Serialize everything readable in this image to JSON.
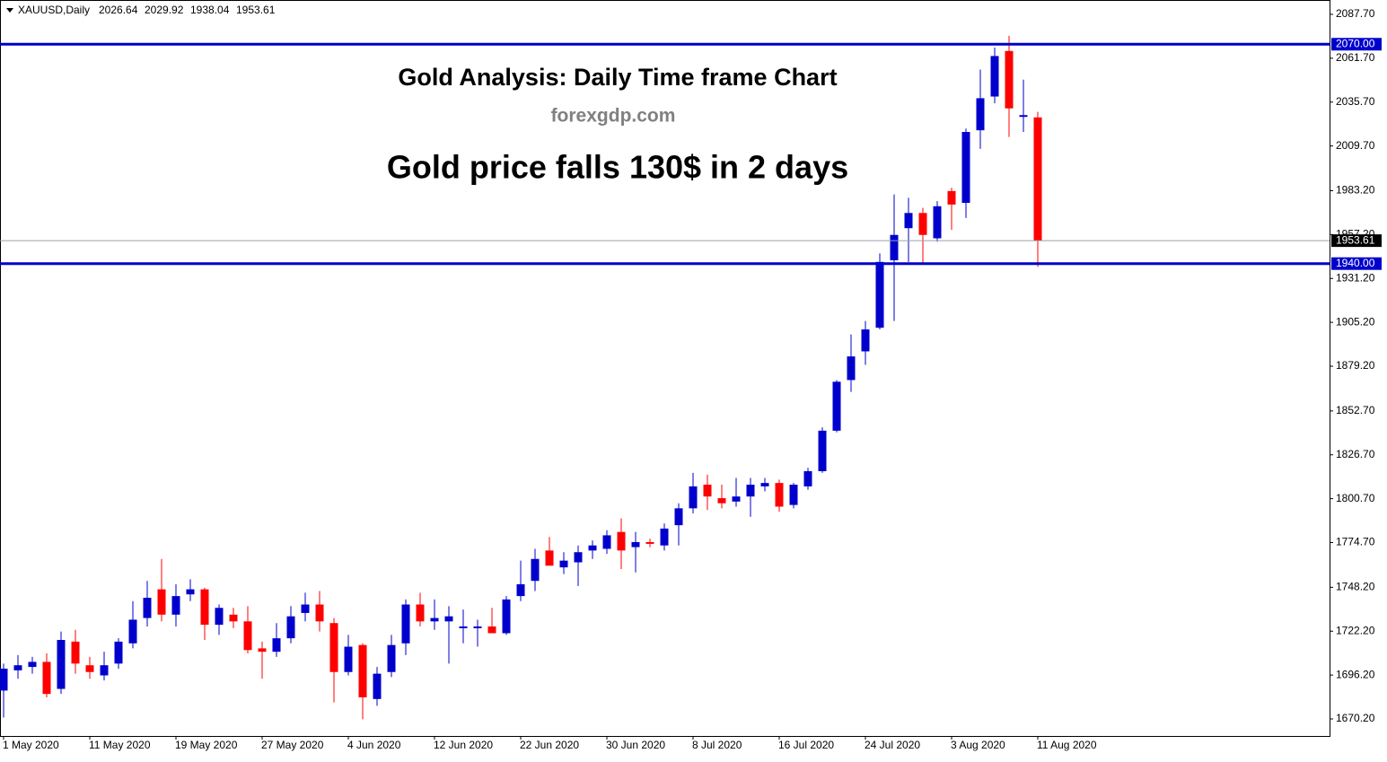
{
  "chart_data": {
    "type": "candlestick",
    "symbol": "XAUUSD,Daily",
    "title": "Gold Analysis: Daily Time frame Chart",
    "subtitle": "forexgdp.com",
    "annotation": "Gold price falls 130$ in 2 days",
    "categories": [
      "1 May 2020",
      null,
      null,
      null,
      null,
      null,
      "11 May 2020",
      null,
      null,
      null,
      null,
      null,
      "19 May 2020",
      null,
      null,
      null,
      null,
      null,
      "27 May 2020",
      null,
      null,
      null,
      null,
      null,
      "4 Jun 2020",
      null,
      null,
      null,
      null,
      null,
      "12 Jun 2020",
      null,
      null,
      null,
      null,
      null,
      "22 Jun 2020",
      null,
      null,
      null,
      null,
      null,
      "30 Jun 2020",
      null,
      null,
      null,
      null,
      null,
      "8 Jul 2020",
      null,
      null,
      null,
      null,
      null,
      "16 Jul 2020",
      null,
      null,
      null,
      null,
      null,
      "24 Jul 2020",
      null,
      null,
      null,
      null,
      null,
      "3 Aug 2020",
      null,
      null,
      null,
      null,
      null,
      "11 Aug 2020"
    ],
    "open": [
      1687,
      1699,
      1701,
      1704,
      1688,
      1716,
      1702,
      1696,
      1703,
      1715,
      1730,
      1747,
      1732,
      1744,
      1747,
      1726,
      1732,
      1728,
      1712,
      1710,
      1718,
      1733,
      1738,
      1727,
      1698,
      1714,
      1682,
      1698,
      1715,
      1738,
      1728,
      1728,
      1724,
      1724,
      1725,
      1721,
      1743,
      1752,
      1770,
      1760,
      1763,
      1770,
      1771,
      1781,
      1772,
      1775,
      1773,
      1785,
      1795,
      1809,
      1801,
      1799,
      1802,
      1808,
      1810,
      1797,
      1808,
      1817,
      1841,
      1871,
      1888,
      1902,
      1942,
      1961,
      1970,
      1955,
      1983,
      1976,
      2019,
      2039,
      2066,
      2027,
      2026.64
    ],
    "high": [
      1703,
      1708,
      1707,
      1709,
      1722,
      1723,
      1707,
      1710,
      1718,
      1740,
      1752,
      1765,
      1750,
      1753,
      1748,
      1738,
      1736,
      1737,
      1716,
      1727,
      1737,
      1745,
      1746,
      1730,
      1720,
      1715,
      1701,
      1720,
      1741,
      1745,
      1741,
      1737,
      1735,
      1729,
      1736,
      1743,
      1764,
      1771,
      1778,
      1769,
      1773,
      1776,
      1782,
      1789,
      1781,
      1777,
      1786,
      1798,
      1816,
      1815,
      1809,
      1813,
      1813,
      1813,
      1812,
      1810,
      1819,
      1843,
      1871,
      1898,
      1906,
      1946,
      1981,
      1979,
      1973,
      1977,
      1985,
      2020,
      2055,
      2068,
      2075,
      2049,
      2029.92
    ],
    "low": [
      1671,
      1694,
      1697,
      1683,
      1685,
      1697,
      1694,
      1693,
      1700,
      1712,
      1725,
      1728,
      1725,
      1740,
      1717,
      1720,
      1724,
      1709,
      1694,
      1707,
      1715,
      1728,
      1722,
      1680,
      1696,
      1670,
      1678,
      1695,
      1708,
      1725,
      1723,
      1703,
      1715,
      1713,
      1721,
      1720,
      1740,
      1746,
      1761,
      1756,
      1749,
      1765,
      1768,
      1759,
      1757,
      1772,
      1770,
      1773,
      1792,
      1794,
      1795,
      1796,
      1790,
      1805,
      1793,
      1795,
      1806,
      1816,
      1840,
      1864,
      1880,
      1901,
      1906,
      1941,
      1940,
      1953,
      1960,
      1967,
      2008,
      2035,
      2015,
      2018,
      1938.04
    ],
    "close": [
      1700,
      1702,
      1704,
      1685,
      1717,
      1703,
      1698,
      1702,
      1716,
      1729,
      1742,
      1732,
      1743,
      1747,
      1726,
      1736,
      1728,
      1711,
      1710,
      1718,
      1731,
      1738,
      1728,
      1698,
      1713,
      1683,
      1697,
      1714,
      1738,
      1728,
      1730,
      1731,
      1725,
      1725,
      1721,
      1741,
      1750,
      1765,
      1761,
      1764,
      1769,
      1773,
      1779,
      1770,
      1775,
      1774,
      1783,
      1795,
      1808,
      1802,
      1798,
      1802,
      1809,
      1810,
      1796,
      1809,
      1817,
      1841,
      1870,
      1885,
      1901,
      1941,
      1957,
      1970,
      1957,
      1974,
      1975,
      2018,
      2038,
      2063,
      2032,
      2028,
      1953.61
    ],
    "up_color": "#0000cc",
    "down_color": "#ff0000",
    "level_color": "#0000cc",
    "levels": [
      {
        "value": 2070,
        "label": "2070.00"
      },
      {
        "value": 1940,
        "label": "1940.00"
      }
    ],
    "ylim": [
      1660.1,
      2096.2
    ],
    "yticks": [
      {
        "value": 2087.7,
        "label": "2087.70"
      },
      {
        "value": 2061.7,
        "label": "2061.70"
      },
      {
        "value": 2035.7,
        "label": "2035.70"
      },
      {
        "value": 2009.7,
        "label": "2009.70"
      },
      {
        "value": 1983.2,
        "label": "1983.20"
      },
      {
        "value": 1957.2,
        "label": "1957.20"
      },
      {
        "value": 1931.2,
        "label": "1931.20"
      },
      {
        "value": 1905.2,
        "label": "1905.20"
      },
      {
        "value": 1879.2,
        "label": "1879.20"
      },
      {
        "value": 1852.7,
        "label": "1852.70"
      },
      {
        "value": 1826.7,
        "label": "1826.70"
      },
      {
        "value": 1800.7,
        "label": "1800.70"
      },
      {
        "value": 1774.7,
        "label": "1774.70"
      },
      {
        "value": 1748.2,
        "label": "1748.20"
      },
      {
        "value": 1722.2,
        "label": "1722.20"
      },
      {
        "value": 1696.2,
        "label": "1696.20"
      },
      {
        "value": 1670.2,
        "label": "1670.20"
      }
    ]
  }
}
